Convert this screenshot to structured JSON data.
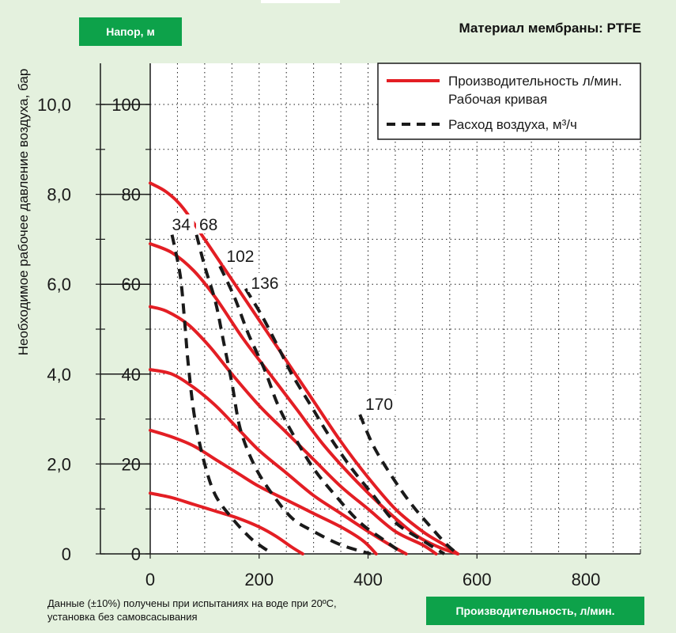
{
  "header": {
    "pressure_button": "Напор, м",
    "membrane_text": "Материал мембраны: PTFE"
  },
  "footer": {
    "note_line1": "Данные (±10%) получены при испытаниях на воде при 20ºС,",
    "note_line2": "установка без самовсасывания",
    "flow_button": "Производительность, л/мин."
  },
  "chart_data": {
    "type": "line",
    "ylabel": "Необходимое рабочее давление воздуха, бар",
    "x_ticks": [
      "0",
      "200",
      "400",
      "600",
      "800"
    ],
    "x_tick_values": [
      0,
      200,
      400,
      600,
      800
    ],
    "xlim": [
      0,
      900
    ],
    "y_ticks_head": [
      "0",
      "20",
      "40",
      "60",
      "80",
      "100"
    ],
    "y_tick_values": [
      0,
      20,
      40,
      60,
      80,
      100
    ],
    "y_ticks_pressure": [
      "0",
      "2,0",
      "4,0",
      "6,0",
      "8,0",
      "10,0"
    ],
    "ylim": [
      0,
      110
    ],
    "grid": true,
    "legend": [
      {
        "label_line1": "Производительность л/мин.",
        "label_line2": "Рабочая кривая",
        "style": "solid",
        "color": "#e31e24"
      },
      {
        "label_line1": "Расход воздуха, м³/ч",
        "label_line2": "",
        "style": "dashed",
        "color": "#1a1a1a"
      }
    ],
    "performance_curves": [
      {
        "points": [
          [
            0,
            82.5
          ],
          [
            30,
            80.5
          ],
          [
            60,
            77
          ],
          [
            100,
            70
          ],
          [
            150,
            61
          ],
          [
            200,
            52
          ],
          [
            250,
            43
          ],
          [
            300,
            34
          ],
          [
            350,
            25
          ],
          [
            400,
            17
          ],
          [
            450,
            10
          ],
          [
            500,
            5
          ],
          [
            540,
            2
          ],
          [
            565,
            0
          ]
        ]
      },
      {
        "points": [
          [
            0,
            69
          ],
          [
            40,
            67
          ],
          [
            80,
            63
          ],
          [
            120,
            57
          ],
          [
            170,
            48
          ],
          [
            220,
            40
          ],
          [
            270,
            32
          ],
          [
            320,
            24
          ],
          [
            380,
            16
          ],
          [
            440,
            9
          ],
          [
            490,
            4
          ],
          [
            530,
            1.5
          ],
          [
            565,
            0
          ]
        ]
      },
      {
        "points": [
          [
            0,
            55
          ],
          [
            30,
            54
          ],
          [
            70,
            51
          ],
          [
            110,
            46
          ],
          [
            150,
            40
          ],
          [
            200,
            33
          ],
          [
            250,
            27
          ],
          [
            300,
            21
          ],
          [
            350,
            15
          ],
          [
            400,
            10
          ],
          [
            450,
            5
          ],
          [
            500,
            2
          ],
          [
            525,
            0
          ]
        ]
      },
      {
        "points": [
          [
            0,
            41
          ],
          [
            40,
            40
          ],
          [
            80,
            37
          ],
          [
            120,
            33
          ],
          [
            160,
            28
          ],
          [
            200,
            23
          ],
          [
            250,
            18
          ],
          [
            300,
            13
          ],
          [
            350,
            9
          ],
          [
            400,
            5
          ],
          [
            440,
            2
          ],
          [
            470,
            0
          ]
        ]
      },
      {
        "points": [
          [
            0,
            27.5
          ],
          [
            40,
            26
          ],
          [
            80,
            24
          ],
          [
            120,
            21
          ],
          [
            160,
            18
          ],
          [
            200,
            15
          ],
          [
            250,
            12
          ],
          [
            300,
            9
          ],
          [
            350,
            6
          ],
          [
            390,
            3
          ],
          [
            415,
            0
          ]
        ]
      },
      {
        "points": [
          [
            0,
            13.5
          ],
          [
            40,
            12.5
          ],
          [
            80,
            11
          ],
          [
            120,
            9.5
          ],
          [
            160,
            8
          ],
          [
            200,
            6
          ],
          [
            230,
            4
          ],
          [
            260,
            1.5
          ],
          [
            280,
            0
          ]
        ]
      }
    ],
    "air_curves": [
      {
        "label": "34",
        "label_pos": [
          40,
          72
        ],
        "points": [
          [
            40,
            71
          ],
          [
            55,
            62
          ],
          [
            63,
            52
          ],
          [
            70,
            42
          ],
          [
            82,
            30
          ],
          [
            100,
            20
          ],
          [
            120,
            13
          ],
          [
            150,
            8
          ],
          [
            180,
            4
          ],
          [
            200,
            2
          ],
          [
            225,
            0
          ]
        ]
      },
      {
        "label": "68",
        "label_pos": [
          90,
          72
        ],
        "points": [
          [
            85,
            71
          ],
          [
            100,
            64
          ],
          [
            120,
            56
          ],
          [
            135,
            47
          ],
          [
            150,
            38
          ],
          [
            165,
            28
          ],
          [
            190,
            20
          ],
          [
            220,
            14
          ],
          [
            260,
            8
          ],
          [
            300,
            5
          ],
          [
            350,
            2
          ],
          [
            405,
            0
          ]
        ]
      },
      {
        "label": "102",
        "label_pos": [
          140,
          65
        ],
        "points": [
          [
            128,
            64
          ],
          [
            155,
            57
          ],
          [
            180,
            49
          ],
          [
            210,
            41
          ],
          [
            235,
            33
          ],
          [
            265,
            26
          ],
          [
            300,
            19
          ],
          [
            340,
            13
          ],
          [
            385,
            7
          ],
          [
            430,
            3
          ],
          [
            465,
            0
          ]
        ]
      },
      {
        "label": "136",
        "label_pos": [
          185,
          59
        ],
        "points": [
          [
            175,
            59
          ],
          [
            205,
            53
          ],
          [
            235,
            46
          ],
          [
            260,
            40
          ],
          [
            295,
            33
          ],
          [
            330,
            26
          ],
          [
            370,
            19
          ],
          [
            410,
            13
          ],
          [
            450,
            7
          ],
          [
            500,
            3
          ],
          [
            540,
            0
          ]
        ]
      },
      {
        "label": "170",
        "label_pos": [
          395,
          32
        ],
        "points": [
          [
            385,
            31
          ],
          [
            410,
            24
          ],
          [
            445,
            17
          ],
          [
            480,
            11
          ],
          [
            515,
            6
          ],
          [
            545,
            2
          ],
          [
            565,
            0
          ]
        ]
      }
    ]
  }
}
